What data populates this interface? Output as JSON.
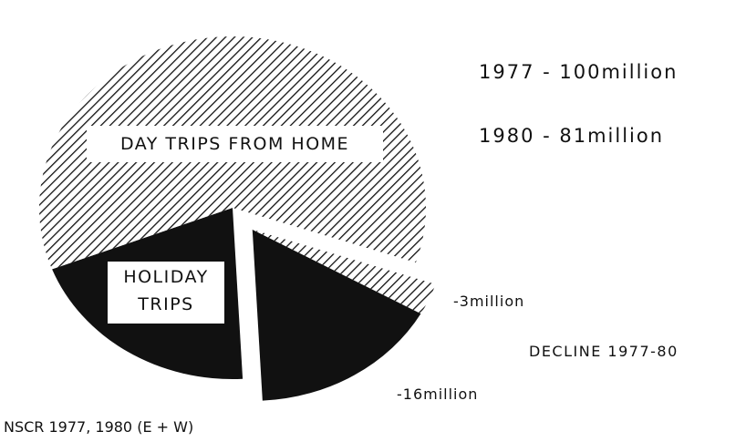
{
  "chart_data": {
    "type": "pie",
    "slices": {
      "categories": [
        "DAY TRIPS FROM HOME",
        "HOLIDAY TRIPS"
      ],
      "values": [
        61,
        20
      ],
      "fills": [
        "hatch",
        "#111111"
      ]
    },
    "decline": {
      "label": "DECLINE 1977-80",
      "values": [
        -3,
        -16
      ],
      "value_labels": [
        "-3million",
        "-16million"
      ],
      "fills": [
        "hatch",
        "#111111"
      ]
    },
    "annotations": [
      "1977 - 100million",
      "1980 - 81million"
    ],
    "source": "NSCR 1977, 1980 (E + W)"
  }
}
